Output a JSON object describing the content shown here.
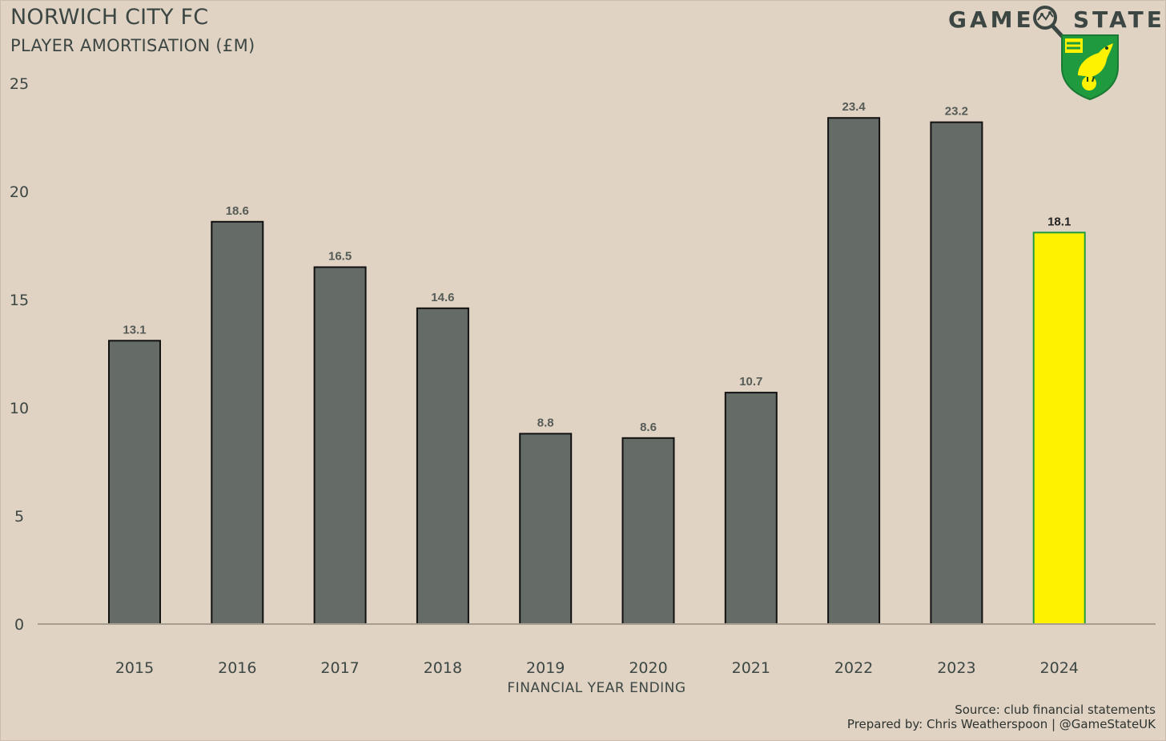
{
  "header": {
    "title": "NORWICH CITY FC",
    "subtitle": "PLAYER AMORTISATION (£M)"
  },
  "brand": {
    "word1": "GAME",
    "word2": "STATE",
    "icon": "magnifier-icon",
    "crest_icon": "norwich-canary-crest-icon"
  },
  "footer": {
    "source": "Source: club financial statements",
    "prepared": "Prepared by: Chris Weatherspoon | @GameStateUK"
  },
  "colors": {
    "background": "#e1d3c3",
    "bar": "#656b66",
    "highlight": "#fff200",
    "highlight_border": "#1f9a3e",
    "text": "#3c4744"
  },
  "chart_data": {
    "type": "bar",
    "title": "NORWICH CITY FC",
    "subtitle": "PLAYER AMORTISATION (£M)",
    "xlabel": "FINANCIAL YEAR ENDING",
    "ylabel": "",
    "categories": [
      "2015",
      "2016",
      "2017",
      "2018",
      "2019",
      "2020",
      "2021",
      "2022",
      "2023",
      "2024"
    ],
    "values": [
      13.1,
      18.6,
      16.5,
      14.6,
      8.8,
      8.6,
      10.7,
      23.4,
      23.2,
      18.1
    ],
    "value_labels": [
      "13.1",
      "18.6",
      "16.5",
      "14.6",
      "8.8",
      "8.6",
      "10.7",
      "23.4",
      "23.2",
      "18.1"
    ],
    "highlight_index": 9,
    "ylim": [
      0,
      25
    ],
    "yticks": [
      "0",
      "5",
      "10",
      "15",
      "20",
      "25"
    ],
    "grid": false,
    "legend": "none"
  }
}
